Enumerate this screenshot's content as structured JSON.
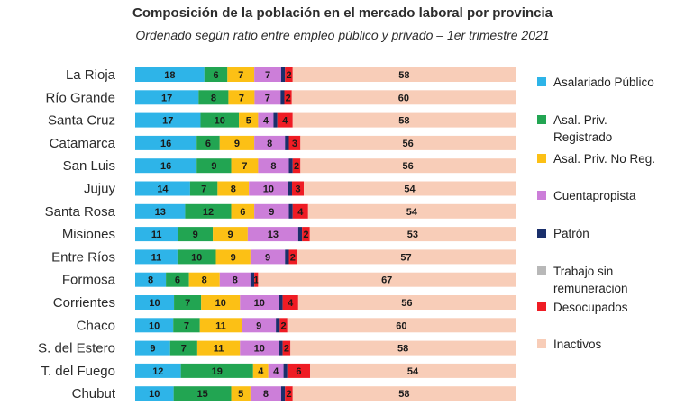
{
  "title": "Composición de la población en el mercado laboral por provincia",
  "subtitle": "Ordenado según ratio entre empleo público y privado – 1er trimestre 2021",
  "chart_data": {
    "type": "bar",
    "orientation": "horizontal",
    "stacked": true,
    "title": "Composición de la población en el mercado laboral por provincia",
    "subtitle": "Ordenado según ratio entre empleo público y privado – 1er trimestre 2021",
    "xlabel": "",
    "ylabel": "",
    "legend_position": "right",
    "categories": [
      "La Rioja",
      "Río Grande",
      "Santa Cruz",
      "Catamarca",
      "San Luis",
      "Jujuy",
      "Santa Rosa",
      "Misiones",
      "Entre Ríos",
      "Formosa",
      "Corrientes",
      "Chaco",
      "S. del Estero",
      "T. del Fuego",
      "Chubut"
    ],
    "series": [
      {
        "name": "Asalariado Público",
        "color": "#2eb4e8",
        "values": [
          18,
          17,
          17,
          16,
          16,
          14,
          13,
          11,
          11,
          8,
          10,
          10,
          9,
          12,
          10
        ]
      },
      {
        "name": "Asal. Priv. Registrado",
        "color": "#22a552",
        "values": [
          6,
          8,
          10,
          6,
          9,
          7,
          12,
          9,
          10,
          6,
          7,
          7,
          7,
          19,
          15
        ]
      },
      {
        "name": "Asal. Priv. No Reg.",
        "color": "#fcc015",
        "values": [
          7,
          7,
          5,
          9,
          7,
          8,
          6,
          9,
          9,
          8,
          10,
          11,
          11,
          4,
          5
        ]
      },
      {
        "name": "Cuentapropista",
        "color": "#cc7ed9",
        "values": [
          7,
          7,
          4,
          8,
          8,
          10,
          9,
          13,
          9,
          8,
          10,
          9,
          10,
          4,
          8
        ]
      },
      {
        "name": "Patrón",
        "color": "#1a2f6b",
        "values": [
          1,
          1,
          1,
          1,
          1,
          1,
          1,
          1,
          1,
          1,
          1,
          1,
          1,
          1,
          1
        ]
      },
      {
        "name": "Trabajo sin remuneracion",
        "color": "#b8b8b8",
        "values": [
          0,
          0,
          0,
          0,
          0,
          0,
          0,
          0,
          0,
          0,
          0,
          0,
          0,
          0,
          0
        ]
      },
      {
        "name": "Desocupados",
        "color": "#ef1c24",
        "values": [
          2,
          2,
          4,
          3,
          2,
          3,
          4,
          2,
          2,
          1,
          4,
          2,
          2,
          6,
          2
        ]
      },
      {
        "name": "Inactivos",
        "color": "#f8cdb8",
        "values": [
          58,
          60,
          58,
          56,
          56,
          54,
          54,
          53,
          57,
          67,
          56,
          60,
          58,
          54,
          58
        ]
      }
    ],
    "xlim": [
      0,
      100
    ]
  },
  "legend": [
    {
      "lines": [
        "Asalariado Público"
      ],
      "color": "#2eb4e8"
    },
    {
      "lines": [
        "Asal. Priv.",
        "Registrado"
      ],
      "color": "#22a552"
    },
    {
      "lines": [
        "Asal. Priv. No Reg."
      ],
      "color": "#fcc015"
    },
    {
      "lines": [
        "Cuentapropista"
      ],
      "color": "#cc7ed9"
    },
    {
      "lines": [
        "Patrón"
      ],
      "color": "#1a2f6b"
    },
    {
      "lines": [
        "Trabajo sin",
        "remuneracion"
      ],
      "color": "#b8b8b8"
    },
    {
      "lines": [
        "Desocupados"
      ],
      "color": "#ef1c24"
    },
    {
      "lines": [
        "Inactivos"
      ],
      "color": "#f8cdb8"
    }
  ]
}
